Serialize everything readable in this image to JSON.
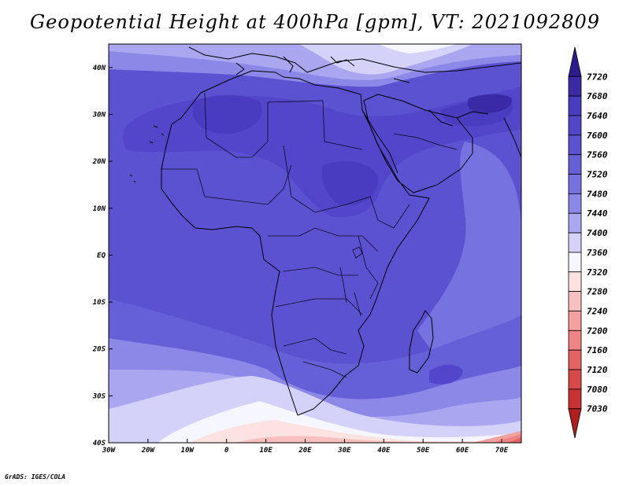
{
  "title": "Geopotential Height at 400hPa [gpm], VT: 2021092809",
  "credit": "GrADS: IGES/COLA",
  "map": {
    "lon_range": [
      -30,
      75
    ],
    "lat_range": [
      -40,
      45
    ],
    "lat_ticks": [
      {
        "value": 40,
        "label": "40N"
      },
      {
        "value": 30,
        "label": "30N"
      },
      {
        "value": 20,
        "label": "20N"
      },
      {
        "value": 10,
        "label": "10N"
      },
      {
        "value": 0,
        "label": "EQ"
      },
      {
        "value": -10,
        "label": "10S"
      },
      {
        "value": -20,
        "label": "20S"
      },
      {
        "value": -30,
        "label": "30S"
      },
      {
        "value": -40,
        "label": "40S"
      }
    ],
    "lon_ticks": [
      {
        "value": -30,
        "label": "30W"
      },
      {
        "value": -20,
        "label": "20W"
      },
      {
        "value": -10,
        "label": "10W"
      },
      {
        "value": 0,
        "label": "0"
      },
      {
        "value": 10,
        "label": "10E"
      },
      {
        "value": 20,
        "label": "20E"
      },
      {
        "value": 30,
        "label": "30E"
      },
      {
        "value": 40,
        "label": "40E"
      },
      {
        "value": 50,
        "label": "50E"
      },
      {
        "value": 60,
        "label": "60E"
      },
      {
        "value": 70,
        "label": "70E"
      }
    ]
  },
  "colorbar": {
    "levels": [
      "7720",
      "7680",
      "7640",
      "7600",
      "7560",
      "7520",
      "7480",
      "7440",
      "7400",
      "7360",
      "7320",
      "7280",
      "7240",
      "7200",
      "7160",
      "7120",
      "7080",
      "7030"
    ],
    "colors": [
      "#2c1a8f",
      "#3a2aa6",
      "#4a3cc0",
      "#5346cb",
      "#5b52d2",
      "#6560d8",
      "#7672e0",
      "#8c88e8",
      "#aaa6f0",
      "#d4d2f8",
      "#f6f6fe",
      "#fde2e2",
      "#f9c0c0",
      "#f4a0a0",
      "#ee8484",
      "#e46464",
      "#d84848",
      "#c83232",
      "#b01e1e"
    ]
  },
  "field": {
    "unit": "gpm",
    "high_core_2": "7680",
    "high_core_1": "7640",
    "high_band": "7600",
    "main": "7560",
    "ocean_south": "7520",
    "ocean_east": "7480",
    "ridge_margin": "7440",
    "ring_low": "7400",
    "white_band": "7360",
    "low_1": "7320",
    "low_2": "7280",
    "low_3": "7240",
    "low_4": "7200",
    "low_5": "7160",
    "low_6": "7120",
    "low_7": "7080"
  }
}
